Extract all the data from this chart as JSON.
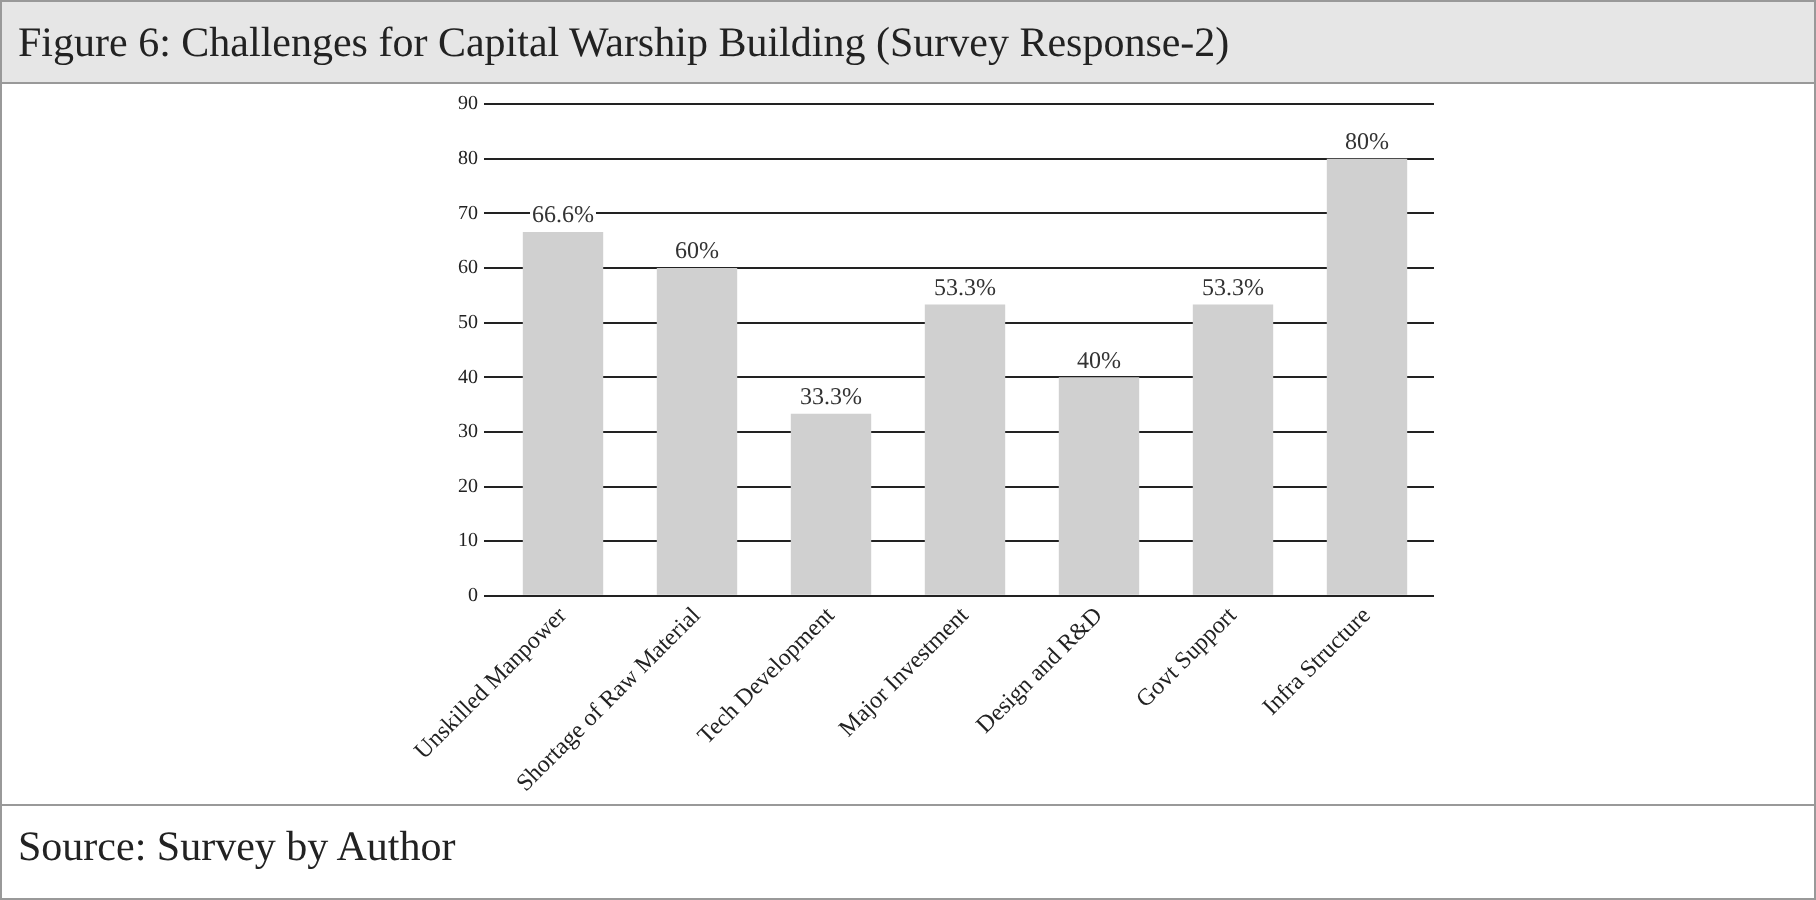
{
  "chart_data": {
    "type": "bar",
    "title": "Figure 6: Challenges for Capital Warship Building (Survey Response-2)",
    "categories": [
      "Unskilled Manpower",
      "Shortage of Raw Material",
      "Tech Development",
      "Major Investment",
      "Design and R&D",
      "Govt Support",
      "Infra Structure"
    ],
    "values": [
      66.6,
      60,
      33.3,
      53.3,
      40,
      53.3,
      80
    ],
    "value_labels": [
      "66.6%",
      "60%",
      "33.3%",
      "53.3%",
      "40%",
      "53.3%",
      "80%"
    ],
    "color": "#d0d0d0",
    "ylim": [
      0,
      90
    ],
    "yticks": [
      0,
      10,
      20,
      30,
      40,
      50,
      60,
      70,
      80,
      90
    ],
    "grid": "y",
    "annotations": [
      "Source: Survey by Author"
    ]
  }
}
